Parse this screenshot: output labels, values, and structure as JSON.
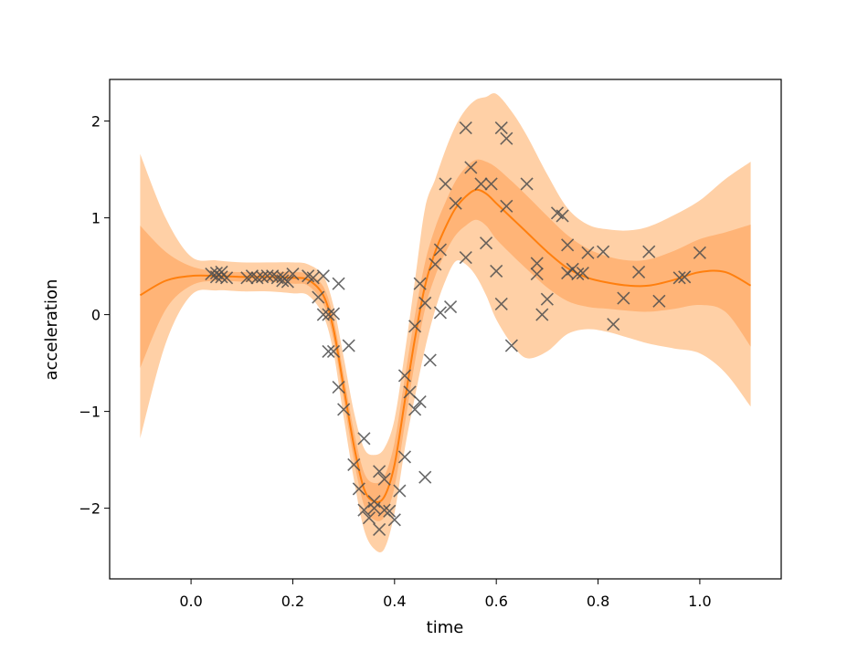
{
  "colors": {
    "line": "#ff7f0e",
    "band_outer": "#ffd0a6",
    "band_inner": "#ffb477",
    "marker": "#4d4d4d"
  },
  "chart_data": {
    "type": "line",
    "title": "",
    "xlabel": "time",
    "ylabel": "acceleration",
    "xlim": [
      -0.16,
      1.16
    ],
    "ylim": [
      -2.73,
      2.43
    ],
    "xticks": [
      0.0,
      0.2,
      0.4,
      0.6,
      0.8,
      1.0
    ],
    "xtick_labels": [
      "0.0",
      "0.2",
      "0.4",
      "0.6",
      "0.8",
      "1.0"
    ],
    "yticks": [
      -2,
      -1,
      0,
      1,
      2
    ],
    "ytick_labels": [
      "−2",
      "−1",
      "0",
      "1",
      "2"
    ],
    "grid": false,
    "mean_curve": {
      "x": [
        -0.1,
        -0.05,
        0.0,
        0.05,
        0.1,
        0.15,
        0.2,
        0.23,
        0.26,
        0.28,
        0.3,
        0.32,
        0.34,
        0.36,
        0.38,
        0.4,
        0.42,
        0.44,
        0.46,
        0.48,
        0.5,
        0.52,
        0.54,
        0.56,
        0.58,
        0.6,
        0.63,
        0.66,
        0.7,
        0.74,
        0.78,
        0.82,
        0.86,
        0.9,
        0.95,
        1.0,
        1.05,
        1.1
      ],
      "y": [
        0.2,
        0.35,
        0.4,
        0.4,
        0.39,
        0.39,
        0.38,
        0.36,
        0.2,
        -0.15,
        -0.75,
        -1.35,
        -1.8,
        -1.93,
        -1.88,
        -1.55,
        -0.9,
        -0.25,
        0.3,
        0.65,
        0.9,
        1.1,
        1.22,
        1.29,
        1.25,
        1.15,
        1.0,
        0.85,
        0.65,
        0.48,
        0.38,
        0.33,
        0.3,
        0.3,
        0.36,
        0.44,
        0.44,
        0.3
      ]
    },
    "inner_band": {
      "upper": [
        0.92,
        0.65,
        0.5,
        0.45,
        0.44,
        0.44,
        0.44,
        0.42,
        0.29,
        -0.04,
        -0.62,
        -1.2,
        -1.63,
        -1.74,
        -1.67,
        -1.32,
        -0.66,
        -0.01,
        0.54,
        0.9,
        1.16,
        1.38,
        1.52,
        1.6,
        1.58,
        1.52,
        1.38,
        1.23,
        1.02,
        0.82,
        0.68,
        0.6,
        0.56,
        0.57,
        0.66,
        0.78,
        0.85,
        0.93
      ],
      "lower": [
        -0.55,
        0.05,
        0.3,
        0.35,
        0.34,
        0.34,
        0.32,
        0.3,
        0.11,
        -0.26,
        -0.88,
        -1.5,
        -1.97,
        -2.12,
        -2.09,
        -1.78,
        -1.14,
        -0.49,
        0.06,
        0.4,
        0.64,
        0.82,
        0.92,
        0.98,
        0.92,
        0.78,
        0.62,
        0.47,
        0.28,
        0.14,
        0.08,
        0.06,
        0.04,
        0.03,
        0.06,
        0.1,
        0.03,
        -0.33
      ]
    },
    "outer_band": {
      "upper": [
        1.66,
        1.0,
        0.6,
        0.56,
        0.54,
        0.54,
        0.54,
        0.52,
        0.4,
        0.09,
        -0.44,
        -1.0,
        -1.38,
        -1.45,
        -1.38,
        -1.08,
        -0.4,
        0.35,
        1.1,
        1.4,
        1.7,
        1.95,
        2.12,
        2.22,
        2.25,
        2.28,
        2.1,
        1.85,
        1.45,
        1.1,
        0.93,
        0.88,
        0.87,
        0.91,
        1.03,
        1.18,
        1.4,
        1.58
      ],
      "lower": [
        -1.28,
        -0.3,
        0.2,
        0.25,
        0.24,
        0.24,
        0.22,
        0.2,
        -0.01,
        -0.39,
        -1.06,
        -1.7,
        -2.22,
        -2.42,
        -2.42,
        -2.05,
        -1.39,
        -0.85,
        -0.35,
        0.05,
        0.35,
        0.55,
        0.52,
        0.4,
        0.2,
        -0.05,
        -0.3,
        -0.45,
        -0.38,
        -0.2,
        -0.15,
        -0.18,
        -0.24,
        -0.3,
        -0.35,
        -0.4,
        -0.6,
        -0.95
      ]
    },
    "observations": {
      "x": [
        0.04,
        0.05,
        0.05,
        0.06,
        0.06,
        0.07,
        0.11,
        0.12,
        0.13,
        0.14,
        0.15,
        0.16,
        0.17,
        0.18,
        0.18,
        0.19,
        0.2,
        0.23,
        0.24,
        0.25,
        0.26,
        0.26,
        0.27,
        0.27,
        0.28,
        0.28,
        0.29,
        0.29,
        0.3,
        0.31,
        0.32,
        0.33,
        0.34,
        0.34,
        0.35,
        0.36,
        0.36,
        0.37,
        0.37,
        0.38,
        0.38,
        0.39,
        0.4,
        0.41,
        0.42,
        0.42,
        0.43,
        0.44,
        0.44,
        0.45,
        0.45,
        0.46,
        0.46,
        0.47,
        0.48,
        0.49,
        0.49,
        0.5,
        0.51,
        0.52,
        0.54,
        0.54,
        0.55,
        0.57,
        0.58,
        0.59,
        0.6,
        0.61,
        0.61,
        0.62,
        0.62,
        0.63,
        0.66,
        0.68,
        0.68,
        0.69,
        0.7,
        0.72,
        0.73,
        0.74,
        0.74,
        0.75,
        0.76,
        0.77,
        0.78,
        0.81,
        0.83,
        0.85,
        0.88,
        0.9,
        0.92,
        0.96,
        0.97,
        1.0
      ],
      "y": [
        0.42,
        0.39,
        0.43,
        0.39,
        0.44,
        0.38,
        0.38,
        0.4,
        0.38,
        0.39,
        0.4,
        0.4,
        0.38,
        0.35,
        0.39,
        0.34,
        0.42,
        0.4,
        0.38,
        0.18,
        0.4,
        0.0,
        -0.38,
        0.0,
        0.01,
        -0.38,
        0.32,
        -0.75,
        -0.98,
        -0.32,
        -1.55,
        -1.8,
        -2.02,
        -1.28,
        -2.1,
        -2.0,
        -1.93,
        -2.22,
        -1.62,
        -1.7,
        -2.02,
        -2.03,
        -2.12,
        -1.82,
        -1.47,
        -0.63,
        -0.8,
        -0.98,
        -0.12,
        0.32,
        -0.9,
        -1.68,
        0.12,
        -0.47,
        0.52,
        0.67,
        0.02,
        1.35,
        0.08,
        1.15,
        1.93,
        0.59,
        1.52,
        1.35,
        0.74,
        1.35,
        0.45,
        1.93,
        0.11,
        1.82,
        1.12,
        -0.32,
        1.35,
        0.53,
        0.42,
        0.0,
        0.16,
        1.05,
        1.02,
        0.43,
        0.72,
        0.47,
        0.42,
        0.43,
        0.64,
        0.65,
        -0.1,
        0.17,
        0.44,
        0.65,
        0.14,
        0.38,
        0.39,
        0.64
      ]
    }
  }
}
